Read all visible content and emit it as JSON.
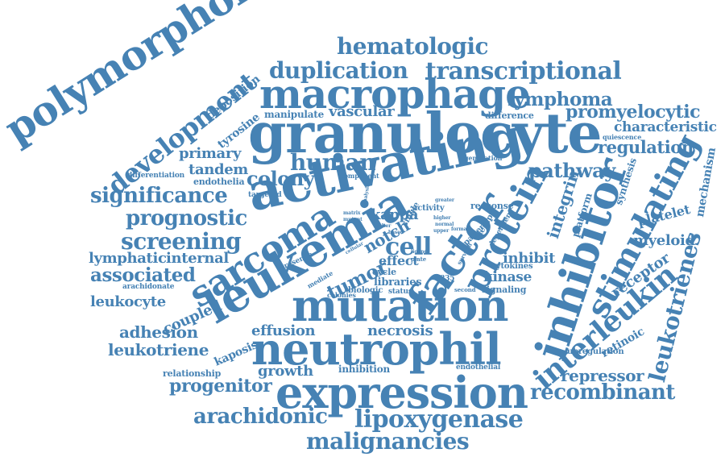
{
  "colors": {
    "word": "#4682b4",
    "background": "#ffffff"
  },
  "words": {
    "polymorphonuclear": "polymorphonuclear",
    "development": "development",
    "deposition": "deposition",
    "tyrosine": "tyrosine",
    "differentiation": "differentiation",
    "endothelia": "endothelia",
    "targeted": "targeted",
    "hematologic": "hematologic",
    "duplication": "duplication",
    "transcriptional": "transcriptional",
    "macrophage": "macrophage",
    "lymphoma": "lymphoma",
    "manipulate": "manipulate",
    "vascular": "vascular",
    "difference": "difference",
    "promyelocytic": "promyelocytic",
    "characteristic": "characteristic",
    "granulocyte": "granulocyte",
    "primary": "primary",
    "human": "human",
    "quiescence": "quiescence",
    "regulation": "regulation",
    "tandem": "tandem",
    "colony": "colony",
    "generation": "generation",
    "component": "component",
    "pathway": "pathway",
    "synthesis": "synthesis",
    "mechanism": "mechanism",
    "significance": "significance",
    "activating": "activating",
    "integrin": "integrin",
    "stimulating": "stimulating",
    "platform": "platform",
    "prognostic": "prognostic",
    "sarcoma": "sarcoma",
    "factor": "factor",
    "protein": "protein",
    "inhibitor": "inhibitor",
    "platelet": "platelet",
    "screening": "screening",
    "leukemia": "leukemia",
    "kappa": "kappa",
    "notch": "notch",
    "cell": "cell",
    "activity": "activity",
    "response": "response",
    "cycle": "cycle",
    "single": "single",
    "patient": "patient",
    "therapy": "therapy",
    "dependent": "dependent",
    "myeloid": "myeloid",
    "leukotrienes": "leukotrienes",
    "lymphatic": "lymphatic",
    "internal": "internal",
    "tumor": "tumor",
    "inhibit": "inhibit",
    "receptor": "receptor",
    "effect": "effect",
    "cytokines": "cytokines",
    "associated": "associated",
    "d835": "d835",
    "kinase": "kinase",
    "libraries": "libraries",
    "interleukin": "interleukin",
    "arachidonate": "arachidonate",
    "status": "status",
    "mutation": "mutation",
    "signaling": "signaling",
    "leukocyte": "leukocyte",
    "coupled": "coupled",
    "biologic": "biologic",
    "second": "second",
    "colonies": "colonies",
    "mediate": "mediate",
    "adhesion": "adhesion",
    "effusion": "effusion",
    "necrosis": "necrosis",
    "leukotriene": "leukotriene",
    "neutrophil": "neutrophil",
    "retinoic": "retinoic",
    "upregulation": "upregulation",
    "kaposis": "kaposis",
    "endothelial": "endothelial",
    "relationship": "relationship",
    "growth": "growth",
    "inhibition": "inhibition",
    "repressor": "repressor",
    "progenitor": "progenitor",
    "expression": "expression",
    "recombinant": "recombinant",
    "arachidonic": "arachidonic",
    "lipoxygenase": "lipoxygenase",
    "malignancies": "malignancies",
    "presence": "presence",
    "greater": "greater",
    "higher": "higher",
    "alter": "alter",
    "based": "based",
    "cellular": "cellular",
    "ligand": "ligand",
    "plate": "plate",
    "normal": "normal",
    "matrix": "matrix",
    "mutant": "mutant",
    "analysis": "analysis",
    "survival": "survival",
    "upper": "upper",
    "formal": "formal"
  }
}
